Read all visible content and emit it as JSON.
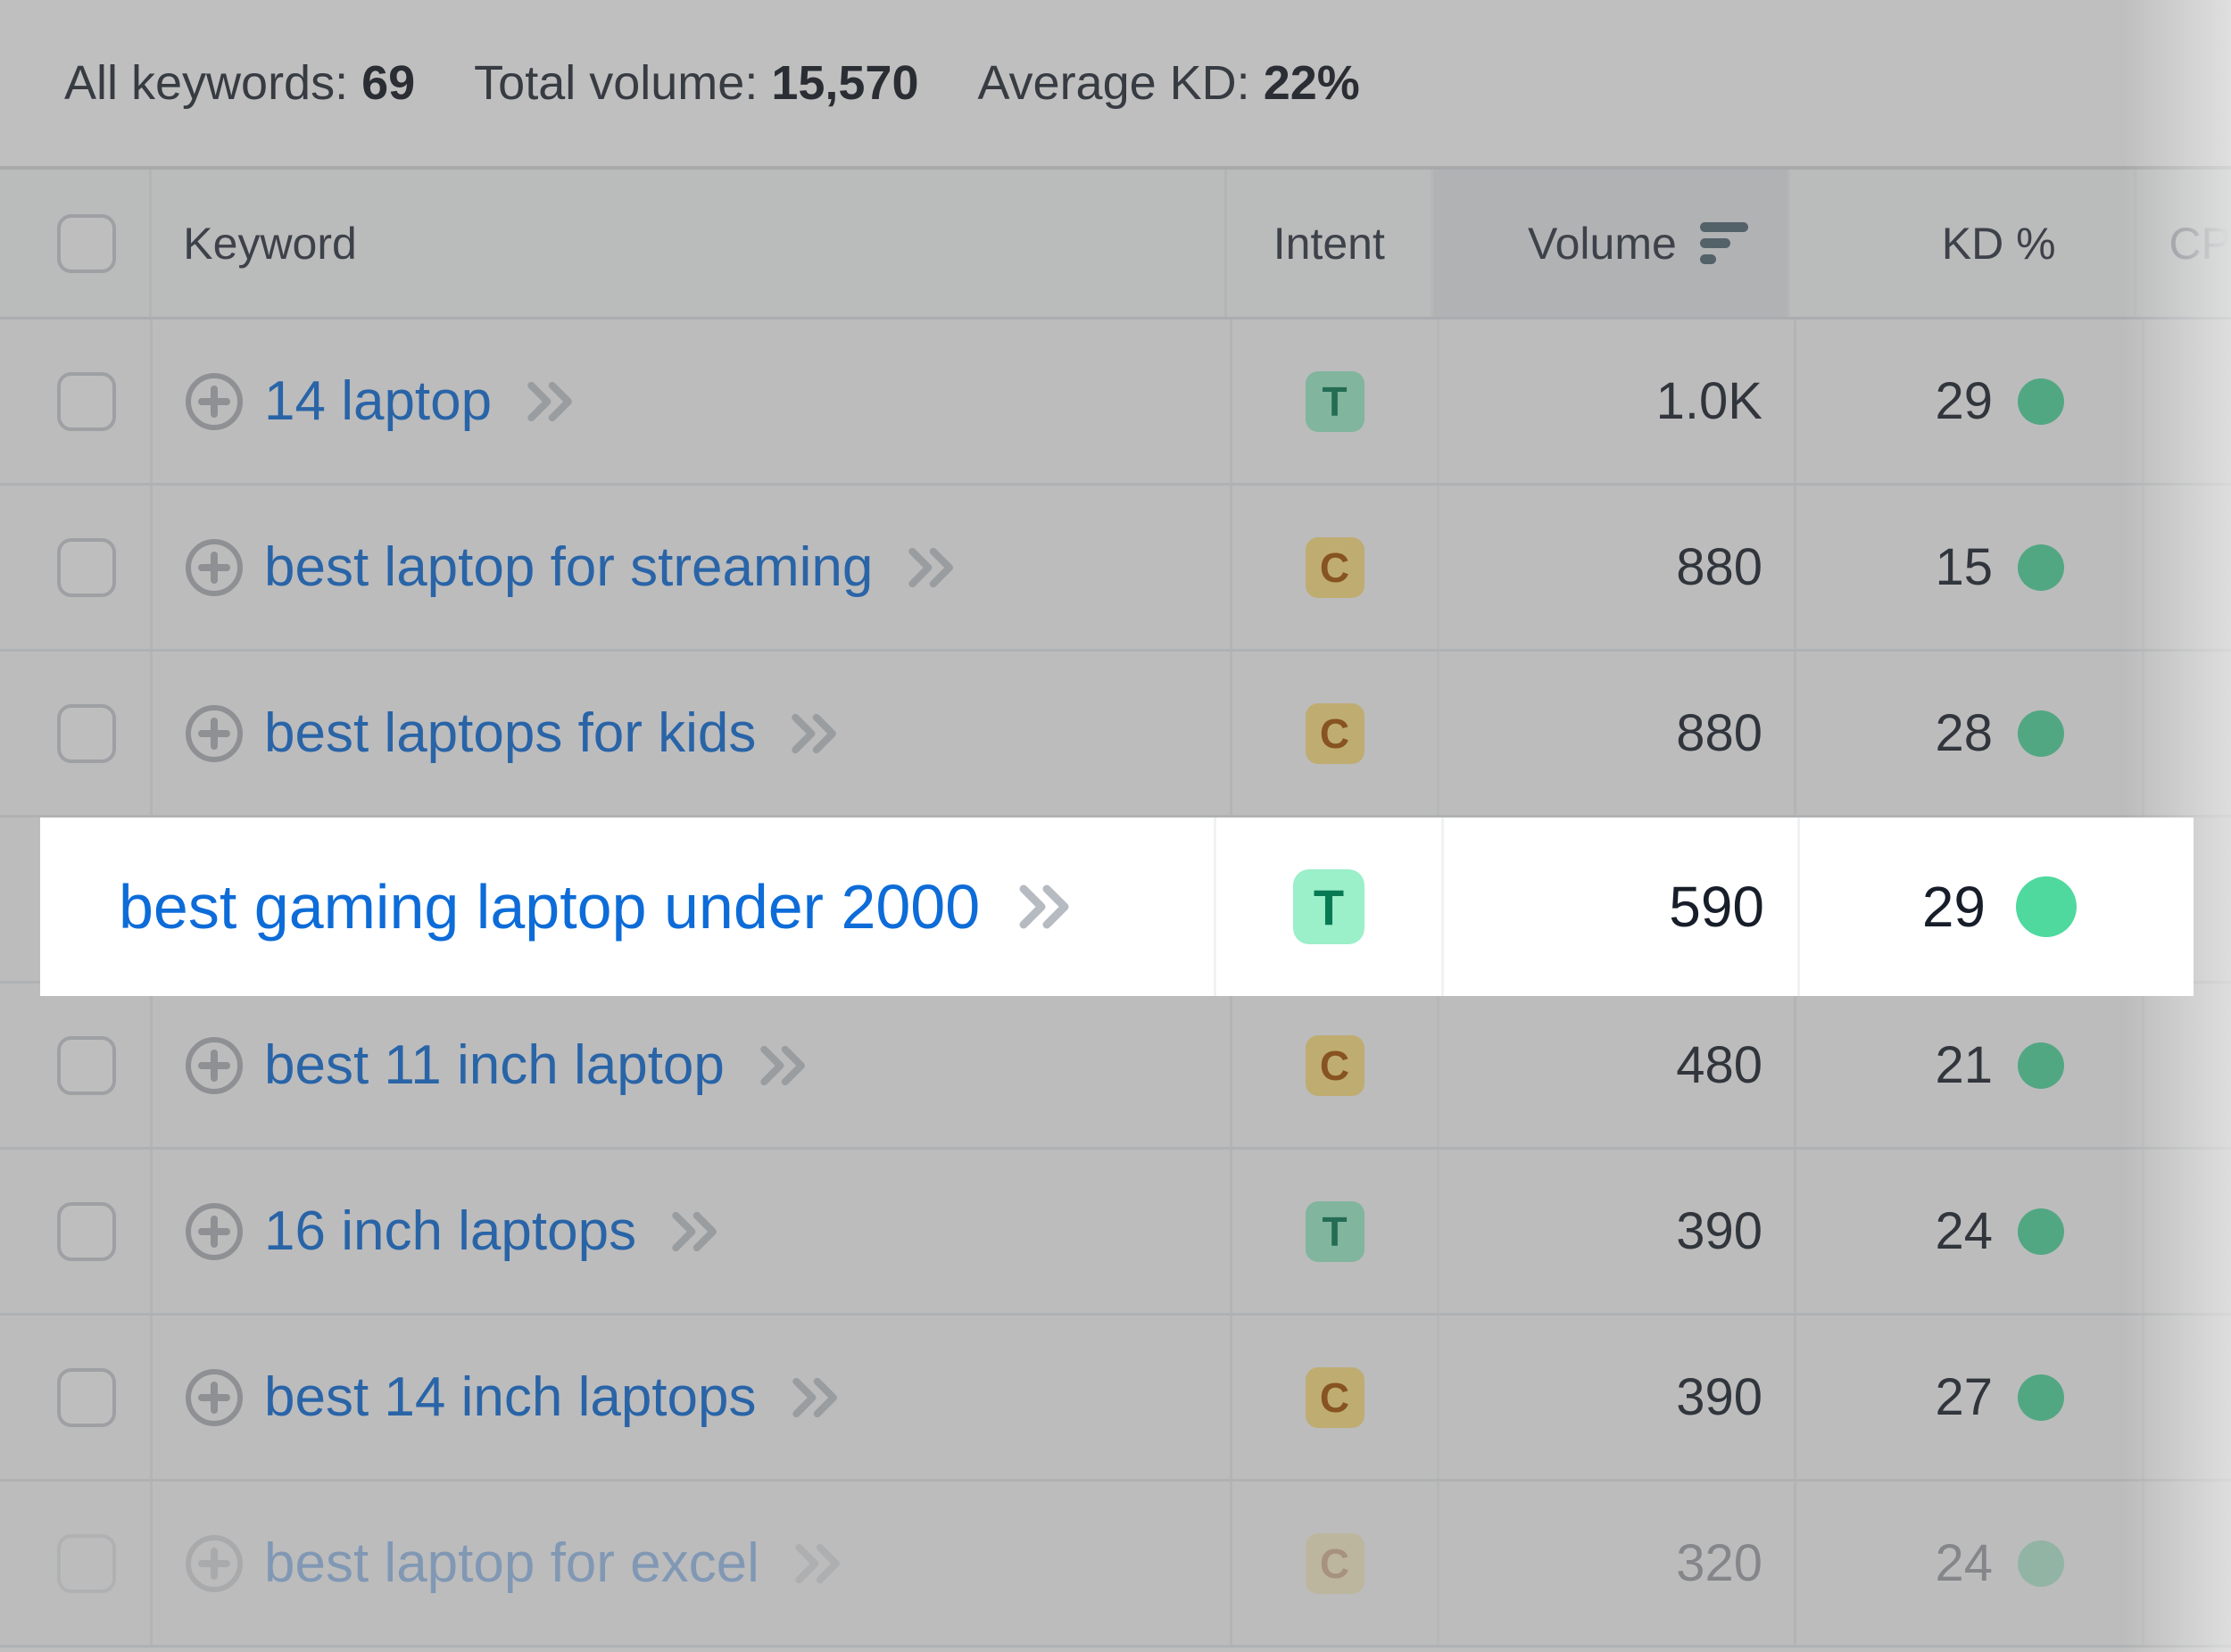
{
  "summary": {
    "all_keywords_label": "All keywords:",
    "all_keywords_value": "69",
    "total_volume_label": "Total volume:",
    "total_volume_value": "15,570",
    "average_kd_label": "Average KD:",
    "average_kd_value": "22%"
  },
  "table": {
    "columns": {
      "keyword": "Keyword",
      "intent": "Intent",
      "volume": "Volume",
      "kd": "KD %",
      "cpc": "CP"
    },
    "sorted_by": "Volume",
    "rows": [
      {
        "keyword": "14 laptop",
        "intent": "T",
        "volume": "1.0K",
        "kd": "29"
      },
      {
        "keyword": "best laptop for streaming",
        "intent": "C",
        "volume": "880",
        "kd": "15"
      },
      {
        "keyword": "best laptops for kids",
        "intent": "C",
        "volume": "880",
        "kd": "28"
      },
      {
        "keyword": "best gaming laptop under 2000",
        "intent": "T",
        "volume": "590",
        "kd": "29",
        "highlighted": true
      },
      {
        "keyword": "best 11 inch laptop",
        "intent": "C",
        "volume": "480",
        "kd": "21"
      },
      {
        "keyword": "16 inch laptops",
        "intent": "T",
        "volume": "390",
        "kd": "24"
      },
      {
        "keyword": "best 14 inch laptops",
        "intent": "C",
        "volume": "390",
        "kd": "27"
      },
      {
        "keyword": "best laptop for excel",
        "intent": "C",
        "volume": "320",
        "kd": "24",
        "faded": true
      }
    ]
  },
  "colors": {
    "link_blue": "#0d6cd8",
    "kd_dot_green": "#4fd99e",
    "intent_transactional_bg": "#9befc9",
    "intent_transactional_text": "#077a54",
    "intent_commercial_bg": "#ffe182",
    "intent_commercial_text": "#a55200",
    "volume_sorted_header_bg": "#e8eaec",
    "dim_overlay": "rgba(88,88,88,0.38)"
  }
}
